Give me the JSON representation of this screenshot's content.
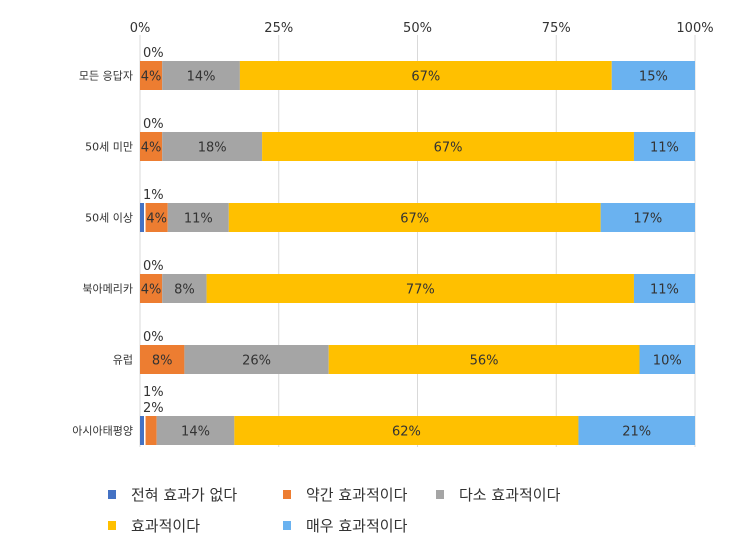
{
  "chart_data": {
    "type": "bar",
    "orientation": "horizontal",
    "stacked": true,
    "xlim": [
      0,
      100
    ],
    "x_ticks": [
      "0%",
      "25%",
      "50%",
      "75%",
      "100%"
    ],
    "grid": true,
    "legend_position": "bottom",
    "categories": [
      "모든 응답자",
      "50세 미만",
      "50세 이상",
      "북아메리카",
      "유럽",
      "아시아태평양"
    ],
    "series": [
      {
        "name": "전혀 효과가 없다",
        "color": "#4472C4",
        "values": [
          0,
          0,
          1,
          0,
          0,
          1
        ]
      },
      {
        "name": "약간 효과적이다",
        "color": "#ED7D31",
        "values": [
          4,
          4,
          4,
          4,
          8,
          2
        ]
      },
      {
        "name": "다소 효과적이다",
        "color": "#A5A5A5",
        "values": [
          14,
          18,
          11,
          8,
          26,
          14
        ]
      },
      {
        "name": "효과적이다",
        "color": "#FFC000",
        "values": [
          67,
          67,
          67,
          77,
          56,
          62
        ]
      },
      {
        "name": "매우 효과적이다",
        "color": "#6AB2F0",
        "values": [
          15,
          11,
          17,
          11,
          10,
          21
        ]
      }
    ],
    "value_labels": [
      [
        "0%",
        "4%",
        "14%",
        "67%",
        "15%"
      ],
      [
        "0%",
        "4%",
        "18%",
        "67%",
        "11%"
      ],
      [
        "1%",
        "4%",
        "11%",
        "67%",
        "17%"
      ],
      [
        "0%",
        "4%",
        "8%",
        "77%",
        "11%"
      ],
      [
        "0%",
        "8%",
        "26%",
        "56%",
        "10%"
      ],
      [
        "1%",
        "2%",
        "14%",
        "62%",
        "21%"
      ]
    ]
  }
}
